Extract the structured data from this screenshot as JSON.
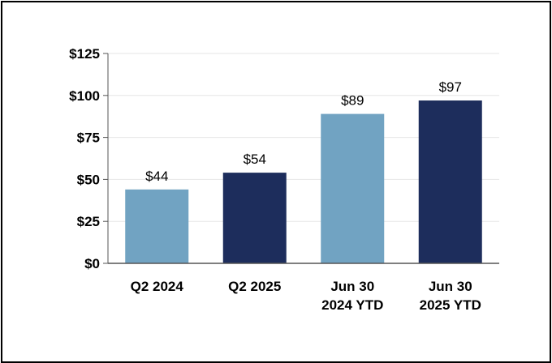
{
  "colors": {
    "light_bar": "#71a3c2",
    "dark_bar": "#1d2d5c",
    "grid": "#e6e6e6",
    "axis": "#555555"
  },
  "chart_data": {
    "type": "bar",
    "categories": [
      [
        "Q2 2024"
      ],
      [
        "Q2 2025"
      ],
      [
        "Jun 30",
        "2024 YTD"
      ],
      [
        "Jun 30",
        "2025 YTD"
      ]
    ],
    "values": [
      44,
      54,
      89,
      97
    ],
    "data_labels": [
      "$44",
      "$54",
      "$89",
      "$97"
    ],
    "bar_colors": [
      "#71a3c2",
      "#1d2d5c",
      "#71a3c2",
      "#1d2d5c"
    ],
    "yticks": [
      0,
      25,
      50,
      75,
      100,
      125
    ],
    "ytick_labels": [
      "$0",
      "$25",
      "$50",
      "$75",
      "$100",
      "$125"
    ],
    "ylim": [
      0,
      125
    ],
    "grid": true,
    "legend": "none",
    "title": "",
    "xlabel": "",
    "ylabel": ""
  }
}
